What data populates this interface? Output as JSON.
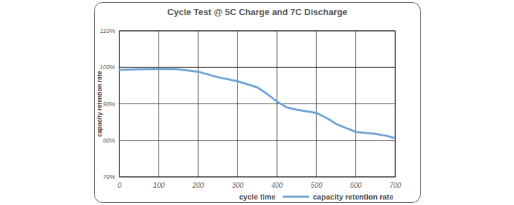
{
  "chart_data": {
    "type": "line",
    "title": "Cycle Test @ 5C Charge and 7C Discharge",
    "x_label": "cycle time",
    "y_label": "capacity retention rate",
    "x": [
      0,
      50,
      100,
      150,
      200,
      250,
      300,
      350,
      375,
      400,
      425,
      450,
      500,
      525,
      550,
      600,
      650,
      680,
      700
    ],
    "series": [
      {
        "name": "capacity retention rate",
        "color": "#6fa3d8",
        "values": [
          99.3,
          99.5,
          99.6,
          99.5,
          98.8,
          97.3,
          96.2,
          94.5,
          92.7,
          90.6,
          89.0,
          88.4,
          87.5,
          86.2,
          84.5,
          82.3,
          81.8,
          81.2,
          80.6
        ]
      }
    ],
    "xlim": [
      0,
      700
    ],
    "xticks": [
      0,
      100,
      200,
      300,
      400,
      500,
      600,
      700
    ],
    "ylim": [
      70,
      110
    ],
    "yticks": [
      {
        "value": 70,
        "label": "70%"
      },
      {
        "value": 80,
        "label": "80%"
      },
      {
        "value": 90,
        "label": "90%"
      },
      {
        "value": 100,
        "label": "100%"
      },
      {
        "value": 110,
        "label": "110%"
      }
    ],
    "grid": true,
    "legend": "bottom"
  }
}
